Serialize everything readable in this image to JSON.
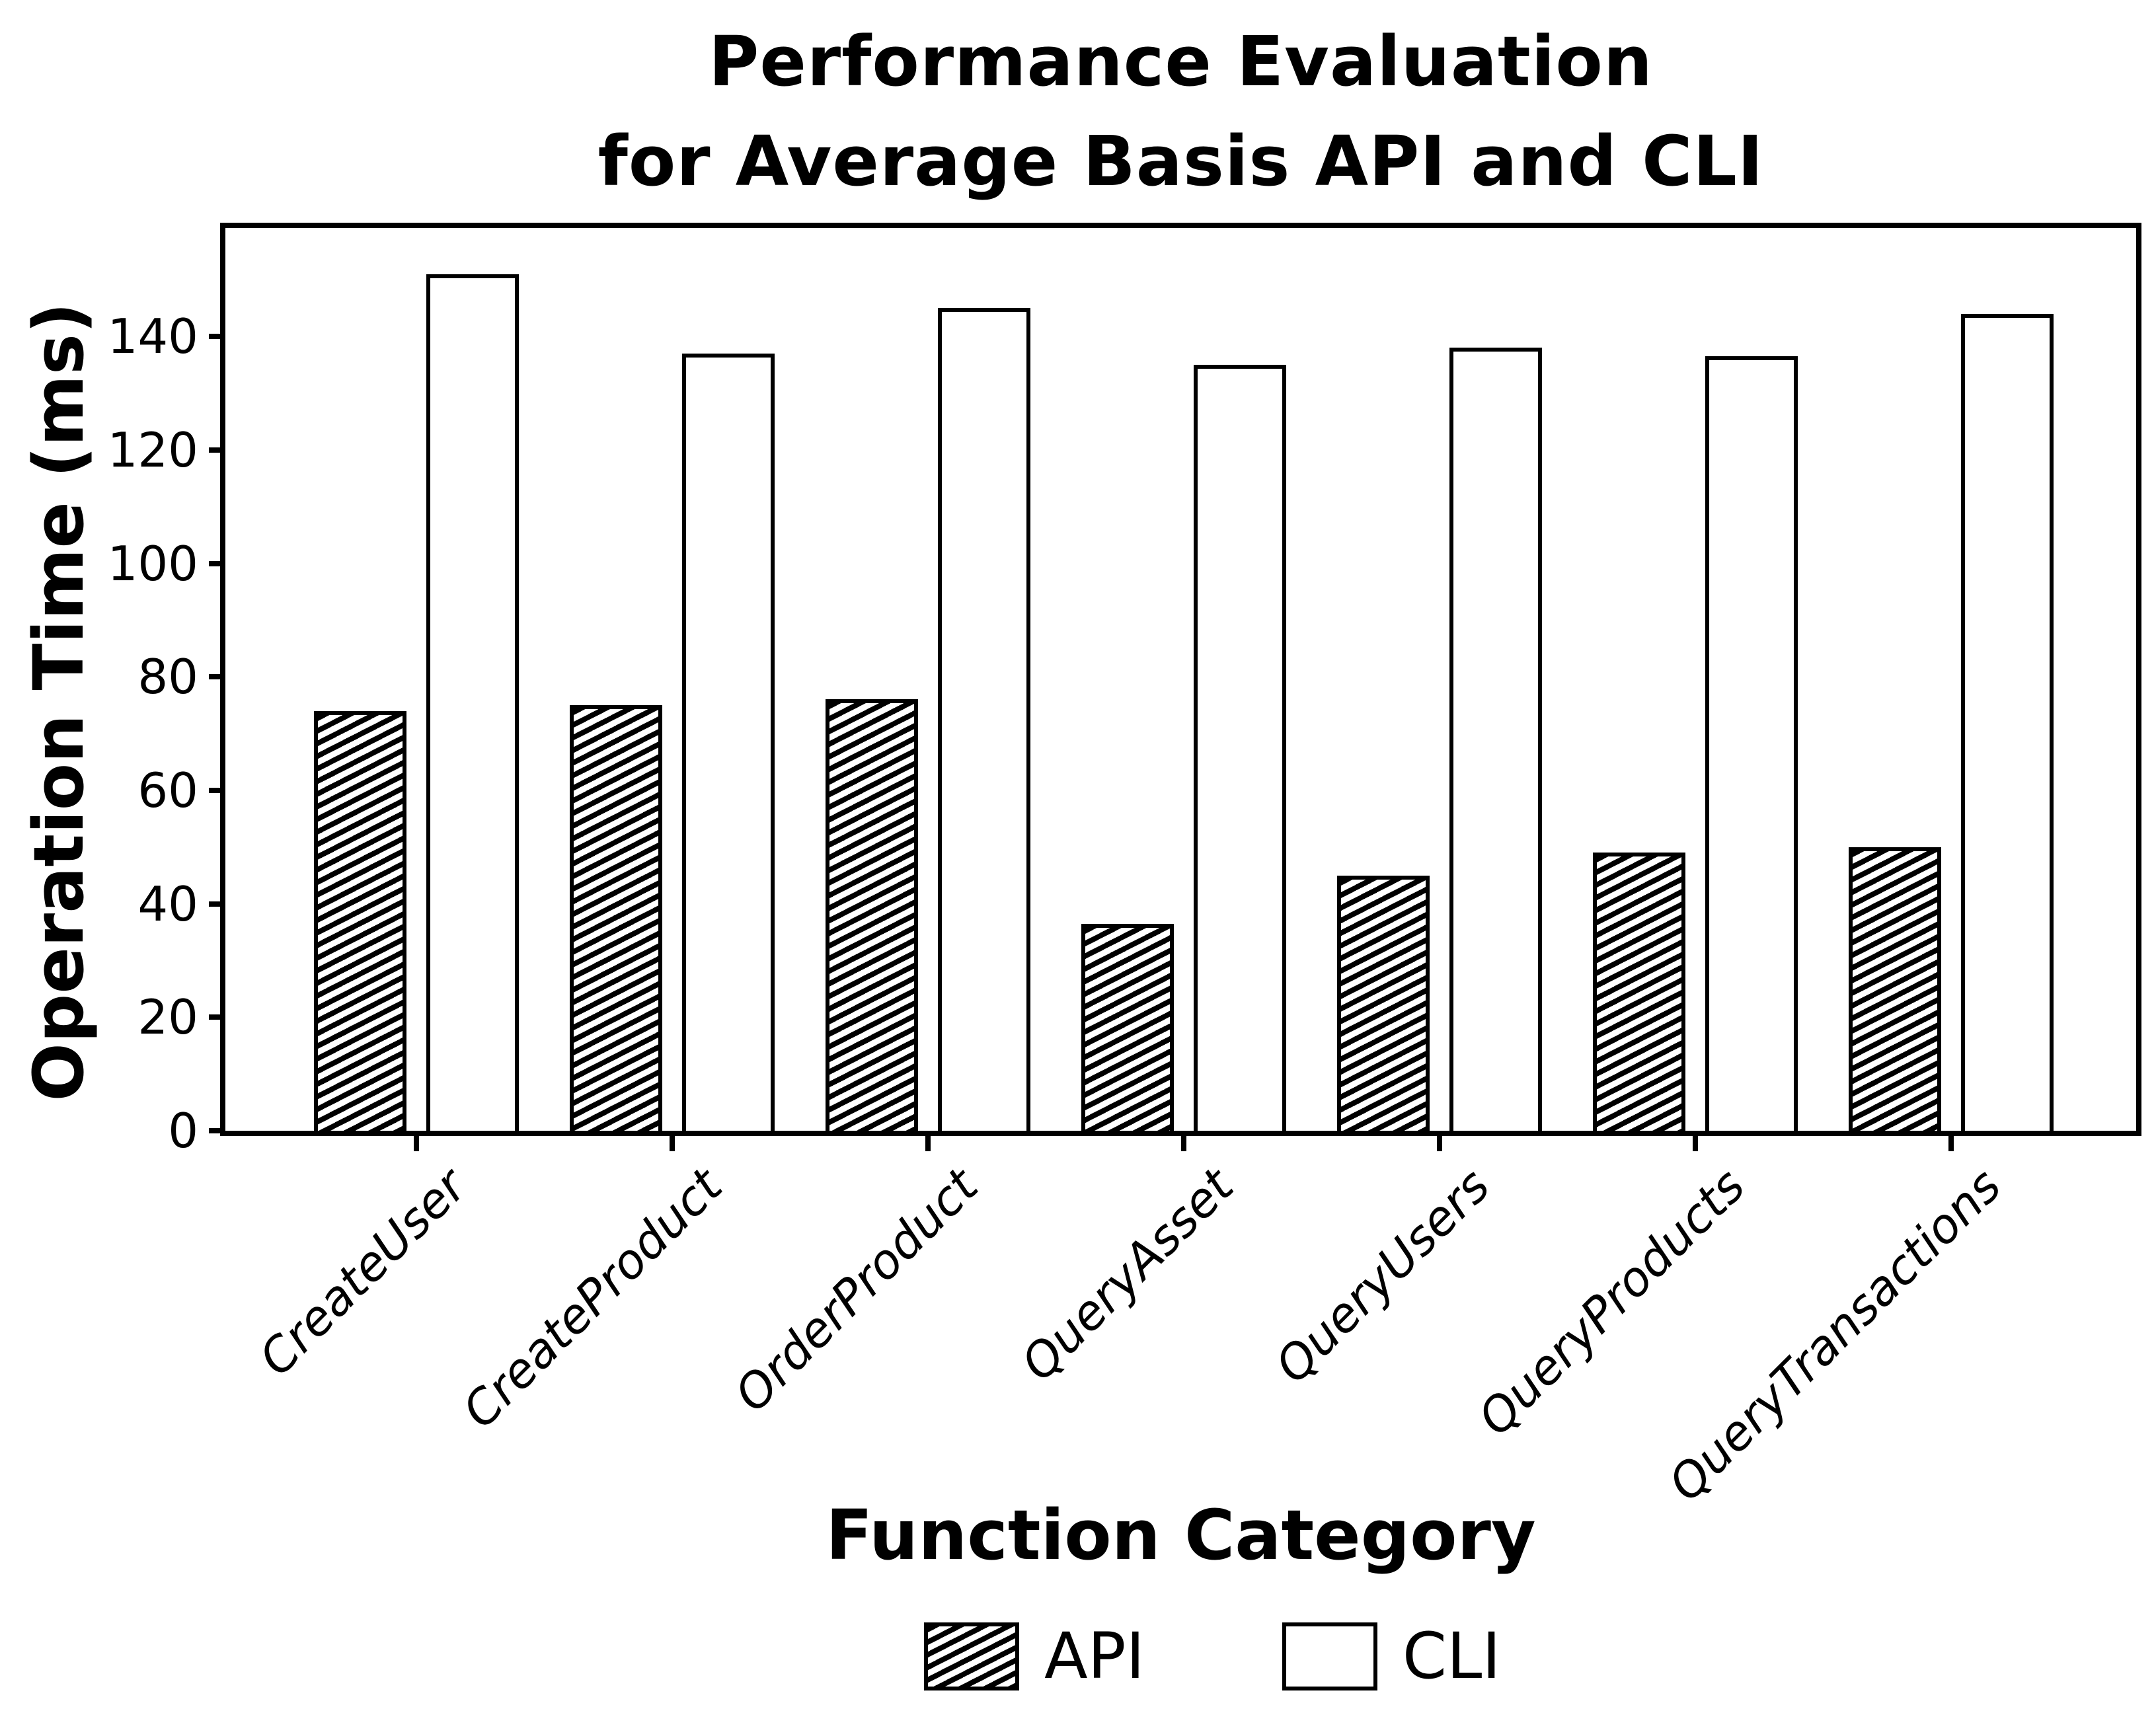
{
  "title": {
    "line1": "Performance Evaluation",
    "line2": "for Average Basis API and CLI"
  },
  "y_axis": {
    "label": "Operation Time (ms)"
  },
  "x_axis": {
    "label": "Function Category"
  },
  "legend": {
    "items": [
      {
        "label": "API",
        "swatch": "hatched-diagonal-icon"
      },
      {
        "label": "CLI",
        "swatch": "white-outline-icon"
      }
    ]
  },
  "colors": {
    "foreground": "#000000",
    "background": "#ffffff",
    "bar_fill_cli": "#ffffff",
    "bar_edge": "#000000"
  },
  "chart_data": {
    "type": "bar",
    "title": "Performance Evaluation for Average Basis API and CLI",
    "xlabel": "Function Category",
    "ylabel": "Operation Time (ms)",
    "categories": [
      "CreateUser",
      "CreateProduct",
      "OrderProduct",
      "QueryAsset",
      "QueryUsers",
      "QueryProducts",
      "QueryTransactions"
    ],
    "series": [
      {
        "name": "API",
        "style": "hatched /",
        "values": [
          74,
          75,
          76,
          36.5,
          45,
          49,
          50
        ]
      },
      {
        "name": "CLI",
        "style": "white outline",
        "values": [
          151,
          137,
          145,
          135,
          138,
          136.5,
          144
        ]
      }
    ],
    "ylim": [
      0,
      159
    ],
    "yticks": [
      0,
      20,
      40,
      60,
      80,
      100,
      120,
      140
    ],
    "grid": false,
    "legend_position": "bottom-center"
  }
}
